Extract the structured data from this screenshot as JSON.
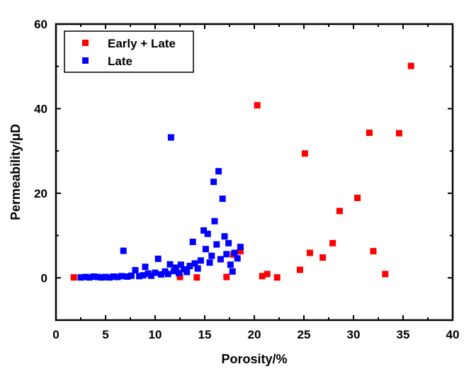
{
  "chart_data": {
    "type": "scatter",
    "xlabel": "Porosity/%",
    "ylabel": "Permeability/μD",
    "xlim": [
      0,
      40
    ],
    "ylim": [
      -10,
      60
    ],
    "xticks": [
      0,
      5,
      10,
      15,
      20,
      25,
      30,
      35,
      40
    ],
    "yticks": [
      0,
      20,
      40,
      60
    ],
    "grid": false,
    "legend_position": "top-left",
    "series": [
      {
        "name": "Early + Late",
        "color": "#ff0000",
        "points": [
          [
            1.8,
            0.1
          ],
          [
            12.5,
            0.2
          ],
          [
            14.2,
            0.1
          ],
          [
            17.2,
            0.2
          ],
          [
            17.9,
            5.5
          ],
          [
            18.6,
            6.3
          ],
          [
            20.3,
            40.8
          ],
          [
            20.8,
            0.4
          ],
          [
            21.3,
            0.9
          ],
          [
            22.3,
            0.1
          ],
          [
            24.6,
            1.9
          ],
          [
            25.1,
            29.4
          ],
          [
            25.6,
            5.9
          ],
          [
            26.9,
            4.8
          ],
          [
            27.9,
            8.2
          ],
          [
            28.6,
            15.8
          ],
          [
            30.4,
            18.9
          ],
          [
            31.6,
            34.3
          ],
          [
            32.0,
            6.3
          ],
          [
            33.2,
            0.9
          ],
          [
            34.6,
            34.2
          ],
          [
            35.8,
            50.1
          ]
        ]
      },
      {
        "name": "Late",
        "color": "#0000ff",
        "points": [
          [
            2.5,
            0.1
          ],
          [
            3.0,
            0.2
          ],
          [
            3.4,
            0.1
          ],
          [
            3.8,
            0.3
          ],
          [
            4.2,
            0.2
          ],
          [
            4.6,
            0.1
          ],
          [
            5.0,
            0.2
          ],
          [
            5.4,
            0.1
          ],
          [
            5.8,
            0.3
          ],
          [
            6.2,
            0.2
          ],
          [
            6.6,
            0.4
          ],
          [
            6.8,
            6.4
          ],
          [
            7.2,
            0.3
          ],
          [
            7.6,
            0.5
          ],
          [
            8.0,
            1.8
          ],
          [
            8.4,
            0.4
          ],
          [
            8.8,
            0.6
          ],
          [
            9.0,
            2.6
          ],
          [
            9.3,
            1.0
          ],
          [
            9.6,
            0.5
          ],
          [
            10.0,
            1.2
          ],
          [
            10.3,
            4.5
          ],
          [
            10.6,
            0.8
          ],
          [
            11.0,
            1.5
          ],
          [
            11.3,
            0.9
          ],
          [
            11.5,
            3.2
          ],
          [
            11.6,
            33.2
          ],
          [
            11.9,
            1.6
          ],
          [
            12.1,
            2.4
          ],
          [
            12.4,
            1.1
          ],
          [
            12.6,
            3.1
          ],
          [
            12.9,
            2.0
          ],
          [
            13.2,
            1.4
          ],
          [
            13.5,
            2.8
          ],
          [
            13.8,
            8.5
          ],
          [
            14.0,
            3.4
          ],
          [
            14.3,
            2.2
          ],
          [
            14.6,
            4.1
          ],
          [
            14.9,
            11.2
          ],
          [
            15.1,
            6.8
          ],
          [
            15.3,
            10.4
          ],
          [
            15.5,
            3.6
          ],
          [
            15.7,
            5.2
          ],
          [
            15.9,
            22.7
          ],
          [
            16.0,
            13.4
          ],
          [
            16.2,
            7.9
          ],
          [
            16.4,
            25.2
          ],
          [
            16.6,
            4.4
          ],
          [
            16.8,
            18.7
          ],
          [
            17.0,
            9.8
          ],
          [
            17.2,
            5.6
          ],
          [
            17.4,
            8.2
          ],
          [
            17.6,
            3.1
          ],
          [
            17.8,
            1.5
          ],
          [
            18.0,
            5.9
          ],
          [
            18.3,
            4.6
          ],
          [
            18.6,
            7.3
          ]
        ]
      }
    ]
  }
}
